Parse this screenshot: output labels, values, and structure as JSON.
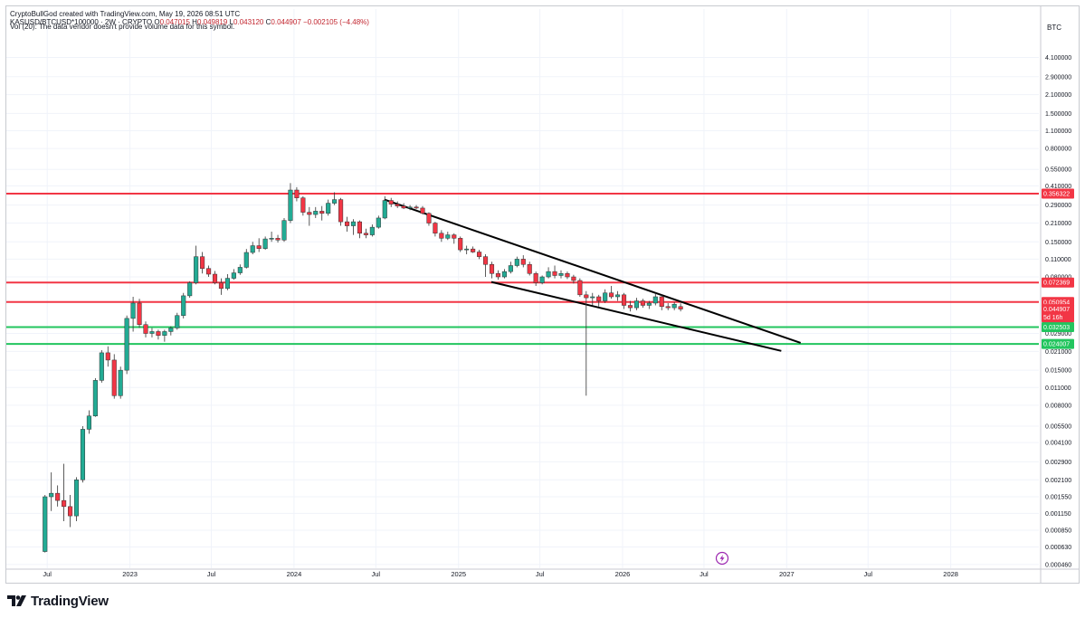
{
  "header": {
    "created_by": "CryptoBullGod created with TradingView.com, May 19, 2026 08:51 UTC",
    "symbol": "KASUSD/BTCUSD*100000 · 2W · CRYPTO",
    "open_label": "O",
    "open": "0.047015",
    "high_label": "H",
    "high": "0.049819",
    "low_label": "L",
    "low": "0.043120",
    "close_label": "C",
    "close": "0.044907",
    "change": "−0.002105 (−4.48%)",
    "volume_note": "Vol (20): The data vendor doesn't provide volume data for this symbol."
  },
  "footer": {
    "brand": "TradingView"
  },
  "chart_data": {
    "type": "candlestick",
    "currency": "BTC",
    "y_scale": "log",
    "ylim": [
      0.00043,
      6.0
    ],
    "xlim": [
      "2022-04-01",
      "2028-07-15"
    ],
    "y_ticks": [
      "4.100000",
      "2.900000",
      "2.100000",
      "1.500000",
      "1.100000",
      "0.800000",
      "0.550000",
      "0.410000",
      "0.290000",
      "0.210000",
      "0.150000",
      "0.110000",
      "0.080000",
      "0.029000",
      "0.021000",
      "0.015000",
      "0.011000",
      "0.008000",
      "0.005500",
      "0.004100",
      "0.002900",
      "0.002100",
      "0.001550",
      "0.001150",
      "0.000850",
      "0.000630",
      "0.000460"
    ],
    "x_ticks": [
      {
        "date": "2022-07-01",
        "label": "Jul"
      },
      {
        "date": "2023-01-01",
        "label": "2023"
      },
      {
        "date": "2023-07-01",
        "label": "Jul"
      },
      {
        "date": "2024-01-01",
        "label": "2024"
      },
      {
        "date": "2024-07-01",
        "label": "Jul"
      },
      {
        "date": "2025-01-01",
        "label": "2025"
      },
      {
        "date": "2025-07-01",
        "label": "Jul"
      },
      {
        "date": "2026-01-01",
        "label": "2026"
      },
      {
        "date": "2026-07-01",
        "label": "Jul"
      },
      {
        "date": "2027-01-01",
        "label": "2027"
      },
      {
        "date": "2027-07-01",
        "label": "Jul"
      },
      {
        "date": "2028-01-01",
        "label": "2028"
      }
    ],
    "horizontal_levels": [
      {
        "value": 0.356322,
        "label": "0.356322",
        "color": "#f23645"
      },
      {
        "value": 0.072369,
        "label": "0.072369",
        "color": "#f23645"
      },
      {
        "value": 0.050954,
        "label": "0.050954",
        "color": "#f23645"
      },
      {
        "value": 0.032503,
        "label": "0.032503",
        "color": "#22c55e"
      },
      {
        "value": 0.024007,
        "label": "0.024007",
        "color": "#22c55e"
      }
    ],
    "price_label": {
      "value": 0.044907,
      "label": "0.044907",
      "countdown": "5d 16h",
      "color": "#f23645"
    },
    "trendlines": [
      {
        "from": {
          "date": "2024-07-20",
          "value": 0.32
        },
        "to": {
          "date": "2027-02-01",
          "value": 0.0245
        }
      },
      {
        "from": {
          "date": "2025-03-15",
          "value": 0.073
        },
        "to": {
          "date": "2026-12-20",
          "value": 0.0212
        }
      }
    ],
    "colors": {
      "up": "#22ab94",
      "down": "#f23645",
      "text": "#131722",
      "grid": "#f0f3fa",
      "trendline": "#000000"
    },
    "candles": [
      {
        "date": "2022-06-20",
        "o": 0.00058,
        "h": 0.0016,
        "l": 0.00057,
        "c": 0.00155
      },
      {
        "date": "2022-07-04",
        "o": 0.00155,
        "h": 0.0024,
        "l": 0.0012,
        "c": 0.00165
      },
      {
        "date": "2022-07-18",
        "o": 0.00165,
        "h": 0.0019,
        "l": 0.0013,
        "c": 0.00145
      },
      {
        "date": "2022-08-01",
        "o": 0.00145,
        "h": 0.0028,
        "l": 0.001,
        "c": 0.0013
      },
      {
        "date": "2022-08-15",
        "o": 0.0013,
        "h": 0.0016,
        "l": 0.0009,
        "c": 0.0011
      },
      {
        "date": "2022-08-29",
        "o": 0.0011,
        "h": 0.0022,
        "l": 0.001,
        "c": 0.0021
      },
      {
        "date": "2022-09-12",
        "o": 0.0021,
        "h": 0.0055,
        "l": 0.002,
        "c": 0.0052
      },
      {
        "date": "2022-09-26",
        "o": 0.0052,
        "h": 0.0073,
        "l": 0.0048,
        "c": 0.0066
      },
      {
        "date": "2022-10-10",
        "o": 0.0066,
        "h": 0.013,
        "l": 0.0065,
        "c": 0.0125
      },
      {
        "date": "2022-10-24",
        "o": 0.0125,
        "h": 0.0215,
        "l": 0.012,
        "c": 0.0205
      },
      {
        "date": "2022-11-07",
        "o": 0.0205,
        "h": 0.023,
        "l": 0.016,
        "c": 0.018
      },
      {
        "date": "2022-11-21",
        "o": 0.018,
        "h": 0.02,
        "l": 0.009,
        "c": 0.0095
      },
      {
        "date": "2022-12-05",
        "o": 0.0095,
        "h": 0.016,
        "l": 0.009,
        "c": 0.015
      },
      {
        "date": "2022-12-19",
        "o": 0.015,
        "h": 0.04,
        "l": 0.014,
        "c": 0.038
      },
      {
        "date": "2023-01-02",
        "o": 0.038,
        "h": 0.056,
        "l": 0.03,
        "c": 0.05
      },
      {
        "date": "2023-01-16",
        "o": 0.05,
        "h": 0.054,
        "l": 0.032,
        "c": 0.034
      },
      {
        "date": "2023-01-30",
        "o": 0.034,
        "h": 0.036,
        "l": 0.027,
        "c": 0.029
      },
      {
        "date": "2023-02-13",
        "o": 0.029,
        "h": 0.032,
        "l": 0.027,
        "c": 0.03
      },
      {
        "date": "2023-02-27",
        "o": 0.03,
        "h": 0.031,
        "l": 0.026,
        "c": 0.028
      },
      {
        "date": "2023-03-13",
        "o": 0.028,
        "h": 0.031,
        "l": 0.025,
        "c": 0.03
      },
      {
        "date": "2023-03-27",
        "o": 0.03,
        "h": 0.033,
        "l": 0.028,
        "c": 0.032
      },
      {
        "date": "2023-04-10",
        "o": 0.032,
        "h": 0.042,
        "l": 0.031,
        "c": 0.04
      },
      {
        "date": "2023-04-24",
        "o": 0.04,
        "h": 0.06,
        "l": 0.038,
        "c": 0.057
      },
      {
        "date": "2023-05-08",
        "o": 0.057,
        "h": 0.074,
        "l": 0.055,
        "c": 0.072
      },
      {
        "date": "2023-05-22",
        "o": 0.072,
        "h": 0.14,
        "l": 0.07,
        "c": 0.115
      },
      {
        "date": "2023-06-05",
        "o": 0.115,
        "h": 0.125,
        "l": 0.085,
        "c": 0.093
      },
      {
        "date": "2023-06-19",
        "o": 0.093,
        "h": 0.098,
        "l": 0.08,
        "c": 0.084
      },
      {
        "date": "2023-07-03",
        "o": 0.084,
        "h": 0.089,
        "l": 0.07,
        "c": 0.072
      },
      {
        "date": "2023-07-17",
        "o": 0.072,
        "h": 0.078,
        "l": 0.058,
        "c": 0.065
      },
      {
        "date": "2023-07-31",
        "o": 0.065,
        "h": 0.084,
        "l": 0.063,
        "c": 0.078
      },
      {
        "date": "2023-08-14",
        "o": 0.078,
        "h": 0.092,
        "l": 0.076,
        "c": 0.086
      },
      {
        "date": "2023-08-28",
        "o": 0.086,
        "h": 0.1,
        "l": 0.083,
        "c": 0.095
      },
      {
        "date": "2023-09-11",
        "o": 0.095,
        "h": 0.132,
        "l": 0.093,
        "c": 0.124
      },
      {
        "date": "2023-09-25",
        "o": 0.124,
        "h": 0.15,
        "l": 0.12,
        "c": 0.14
      },
      {
        "date": "2023-10-09",
        "o": 0.14,
        "h": 0.16,
        "l": 0.125,
        "c": 0.133
      },
      {
        "date": "2023-10-23",
        "o": 0.133,
        "h": 0.165,
        "l": 0.13,
        "c": 0.158
      },
      {
        "date": "2023-11-06",
        "o": 0.158,
        "h": 0.18,
        "l": 0.15,
        "c": 0.16
      },
      {
        "date": "2023-11-20",
        "o": 0.16,
        "h": 0.17,
        "l": 0.148,
        "c": 0.155
      },
      {
        "date": "2023-12-04",
        "o": 0.155,
        "h": 0.23,
        "l": 0.15,
        "c": 0.22
      },
      {
        "date": "2023-12-18",
        "o": 0.22,
        "h": 0.43,
        "l": 0.21,
        "c": 0.38
      },
      {
        "date": "2024-01-01",
        "o": 0.38,
        "h": 0.4,
        "l": 0.31,
        "c": 0.33
      },
      {
        "date": "2024-01-15",
        "o": 0.33,
        "h": 0.34,
        "l": 0.24,
        "c": 0.255
      },
      {
        "date": "2024-01-29",
        "o": 0.255,
        "h": 0.28,
        "l": 0.2,
        "c": 0.245
      },
      {
        "date": "2024-02-12",
        "o": 0.245,
        "h": 0.28,
        "l": 0.23,
        "c": 0.26
      },
      {
        "date": "2024-02-26",
        "o": 0.26,
        "h": 0.285,
        "l": 0.22,
        "c": 0.25
      },
      {
        "date": "2024-03-11",
        "o": 0.25,
        "h": 0.32,
        "l": 0.24,
        "c": 0.3
      },
      {
        "date": "2024-03-25",
        "o": 0.3,
        "h": 0.365,
        "l": 0.29,
        "c": 0.32
      },
      {
        "date": "2024-04-08",
        "o": 0.32,
        "h": 0.33,
        "l": 0.2,
        "c": 0.215
      },
      {
        "date": "2024-04-22",
        "o": 0.215,
        "h": 0.235,
        "l": 0.18,
        "c": 0.2
      },
      {
        "date": "2024-05-06",
        "o": 0.2,
        "h": 0.225,
        "l": 0.17,
        "c": 0.215
      },
      {
        "date": "2024-05-20",
        "o": 0.215,
        "h": 0.22,
        "l": 0.16,
        "c": 0.175
      },
      {
        "date": "2024-06-03",
        "o": 0.175,
        "h": 0.19,
        "l": 0.16,
        "c": 0.17
      },
      {
        "date": "2024-06-17",
        "o": 0.17,
        "h": 0.205,
        "l": 0.165,
        "c": 0.195
      },
      {
        "date": "2024-07-01",
        "o": 0.195,
        "h": 0.24,
        "l": 0.19,
        "c": 0.23
      },
      {
        "date": "2024-07-15",
        "o": 0.23,
        "h": 0.34,
        "l": 0.225,
        "c": 0.315
      },
      {
        "date": "2024-07-29",
        "o": 0.315,
        "h": 0.33,
        "l": 0.28,
        "c": 0.295
      },
      {
        "date": "2024-08-12",
        "o": 0.295,
        "h": 0.31,
        "l": 0.275,
        "c": 0.285
      },
      {
        "date": "2024-08-26",
        "o": 0.285,
        "h": 0.3,
        "l": 0.27,
        "c": 0.275
      },
      {
        "date": "2024-09-09",
        "o": 0.275,
        "h": 0.29,
        "l": 0.265,
        "c": 0.28
      },
      {
        "date": "2024-09-23",
        "o": 0.28,
        "h": 0.29,
        "l": 0.27,
        "c": 0.275
      },
      {
        "date": "2024-10-07",
        "o": 0.275,
        "h": 0.285,
        "l": 0.245,
        "c": 0.25
      },
      {
        "date": "2024-10-21",
        "o": 0.25,
        "h": 0.255,
        "l": 0.2,
        "c": 0.21
      },
      {
        "date": "2024-11-04",
        "o": 0.21,
        "h": 0.215,
        "l": 0.165,
        "c": 0.175
      },
      {
        "date": "2024-11-18",
        "o": 0.175,
        "h": 0.185,
        "l": 0.15,
        "c": 0.16
      },
      {
        "date": "2024-12-02",
        "o": 0.16,
        "h": 0.18,
        "l": 0.155,
        "c": 0.17
      },
      {
        "date": "2024-12-16",
        "o": 0.17,
        "h": 0.175,
        "l": 0.145,
        "c": 0.16
      },
      {
        "date": "2024-12-30",
        "o": 0.16,
        "h": 0.165,
        "l": 0.125,
        "c": 0.13
      },
      {
        "date": "2025-01-13",
        "o": 0.13,
        "h": 0.14,
        "l": 0.12,
        "c": 0.132
      },
      {
        "date": "2025-01-27",
        "o": 0.132,
        "h": 0.138,
        "l": 0.123,
        "c": 0.125
      },
      {
        "date": "2025-02-10",
        "o": 0.125,
        "h": 0.13,
        "l": 0.11,
        "c": 0.115
      },
      {
        "date": "2025-02-24",
        "o": 0.115,
        "h": 0.12,
        "l": 0.08,
        "c": 0.1
      },
      {
        "date": "2025-03-10",
        "o": 0.1,
        "h": 0.105,
        "l": 0.078,
        "c": 0.085
      },
      {
        "date": "2025-03-24",
        "o": 0.085,
        "h": 0.09,
        "l": 0.076,
        "c": 0.08
      },
      {
        "date": "2025-04-07",
        "o": 0.08,
        "h": 0.092,
        "l": 0.078,
        "c": 0.088
      },
      {
        "date": "2025-04-21",
        "o": 0.088,
        "h": 0.105,
        "l": 0.085,
        "c": 0.098
      },
      {
        "date": "2025-05-05",
        "o": 0.098,
        "h": 0.115,
        "l": 0.095,
        "c": 0.11
      },
      {
        "date": "2025-05-19",
        "o": 0.11,
        "h": 0.118,
        "l": 0.095,
        "c": 0.1
      },
      {
        "date": "2025-06-02",
        "o": 0.1,
        "h": 0.105,
        "l": 0.082,
        "c": 0.085
      },
      {
        "date": "2025-06-16",
        "o": 0.085,
        "h": 0.088,
        "l": 0.068,
        "c": 0.072
      },
      {
        "date": "2025-06-30",
        "o": 0.072,
        "h": 0.082,
        "l": 0.07,
        "c": 0.08
      },
      {
        "date": "2025-07-14",
        "o": 0.08,
        "h": 0.095,
        "l": 0.078,
        "c": 0.088
      },
      {
        "date": "2025-07-28",
        "o": 0.088,
        "h": 0.098,
        "l": 0.078,
        "c": 0.082
      },
      {
        "date": "2025-08-11",
        "o": 0.082,
        "h": 0.09,
        "l": 0.078,
        "c": 0.085
      },
      {
        "date": "2025-08-25",
        "o": 0.085,
        "h": 0.088,
        "l": 0.077,
        "c": 0.08
      },
      {
        "date": "2025-09-08",
        "o": 0.08,
        "h": 0.083,
        "l": 0.071,
        "c": 0.075
      },
      {
        "date": "2025-09-22",
        "o": 0.075,
        "h": 0.078,
        "l": 0.056,
        "c": 0.058
      },
      {
        "date": "2025-10-06",
        "o": 0.058,
        "h": 0.062,
        "l": 0.0095,
        "c": 0.055
      },
      {
        "date": "2025-10-20",
        "o": 0.055,
        "h": 0.06,
        "l": 0.048,
        "c": 0.056
      },
      {
        "date": "2025-11-03",
        "o": 0.056,
        "h": 0.058,
        "l": 0.047,
        "c": 0.052
      },
      {
        "date": "2025-11-17",
        "o": 0.052,
        "h": 0.064,
        "l": 0.05,
        "c": 0.06
      },
      {
        "date": "2025-12-01",
        "o": 0.06,
        "h": 0.068,
        "l": 0.054,
        "c": 0.056
      },
      {
        "date": "2025-12-15",
        "o": 0.056,
        "h": 0.062,
        "l": 0.052,
        "c": 0.058
      },
      {
        "date": "2025-12-29",
        "o": 0.058,
        "h": 0.06,
        "l": 0.045,
        "c": 0.048
      },
      {
        "date": "2026-01-12",
        "o": 0.048,
        "h": 0.052,
        "l": 0.043,
        "c": 0.046
      },
      {
        "date": "2026-01-26",
        "o": 0.046,
        "h": 0.055,
        "l": 0.044,
        "c": 0.052
      },
      {
        "date": "2026-02-09",
        "o": 0.052,
        "h": 0.054,
        "l": 0.046,
        "c": 0.048
      },
      {
        "date": "2026-02-23",
        "o": 0.048,
        "h": 0.052,
        "l": 0.045,
        "c": 0.05
      },
      {
        "date": "2026-03-09",
        "o": 0.05,
        "h": 0.06,
        "l": 0.048,
        "c": 0.056
      },
      {
        "date": "2026-03-23",
        "o": 0.056,
        "h": 0.058,
        "l": 0.044,
        "c": 0.047
      },
      {
        "date": "2026-04-06",
        "o": 0.047,
        "h": 0.05,
        "l": 0.044,
        "c": 0.046
      },
      {
        "date": "2026-04-20",
        "o": 0.046,
        "h": 0.051,
        "l": 0.044,
        "c": 0.049
      },
      {
        "date": "2026-05-04",
        "o": 0.047,
        "h": 0.0498,
        "l": 0.0431,
        "c": 0.0449
      }
    ]
  }
}
